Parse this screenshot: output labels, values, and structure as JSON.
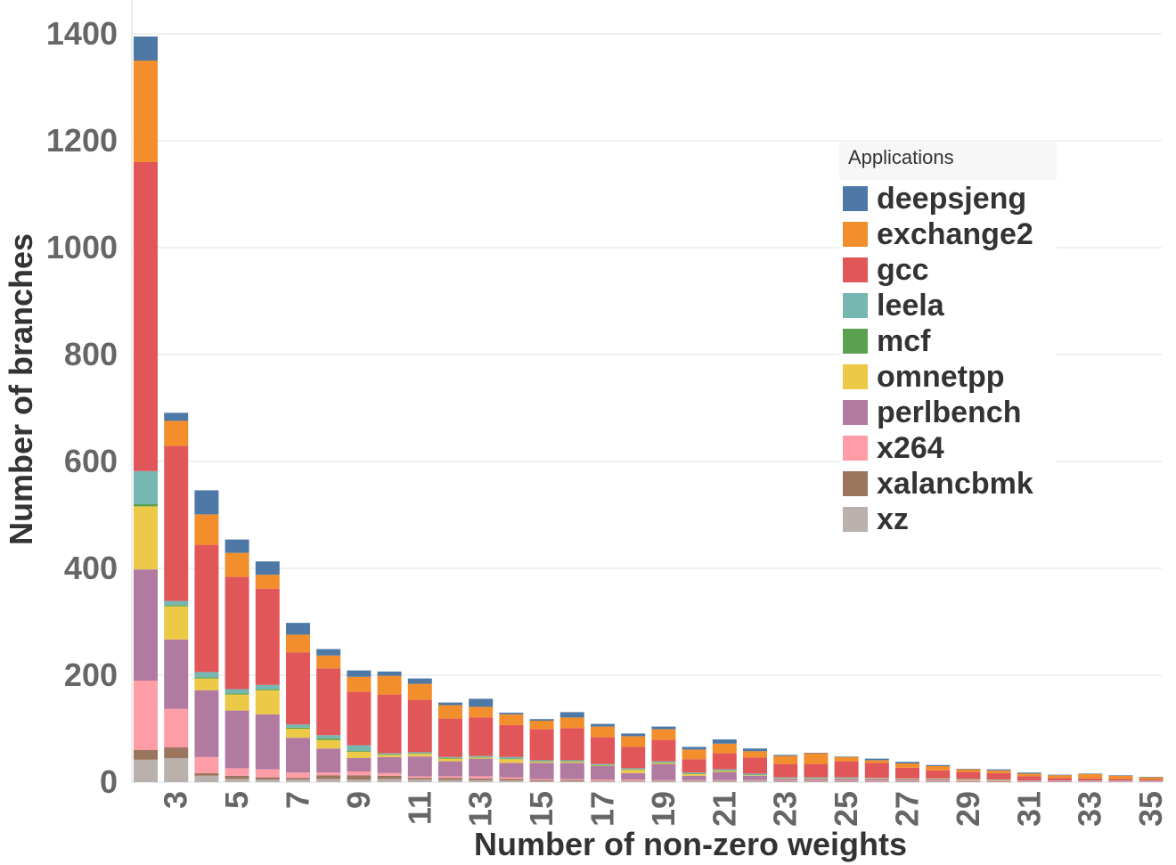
{
  "chart_data": {
    "type": "bar",
    "stacked": true,
    "xlabel": "Number of non-zero weights",
    "ylabel": "Number of branches",
    "ylim": [
      0,
      1400
    ],
    "yticks": [
      0,
      200,
      400,
      600,
      800,
      1000,
      1200,
      1400
    ],
    "xtick_labels": [
      "3",
      "5",
      "7",
      "9",
      "11",
      "13",
      "15",
      "17",
      "19",
      "21",
      "23",
      "25",
      "27",
      "29",
      "31",
      "33",
      "35"
    ],
    "grid": true,
    "legend_title": "Applications",
    "legend_position": "right",
    "categories": [
      2,
      3,
      4,
      5,
      6,
      7,
      8,
      9,
      10,
      11,
      12,
      13,
      14,
      15,
      16,
      17,
      18,
      19,
      20,
      21,
      22,
      23,
      24,
      25,
      26,
      27,
      28,
      29,
      30,
      31,
      32,
      33,
      34,
      35
    ],
    "series": [
      {
        "name": "xz",
        "color": "#bab0ac",
        "values": [
          42,
          45,
          12,
          6,
          5,
          5,
          6,
          5,
          6,
          5,
          4,
          4,
          3,
          2,
          2,
          2,
          2,
          2,
          2,
          2,
          2,
          1,
          1,
          1,
          1,
          1,
          1,
          1,
          0,
          0,
          0,
          0,
          0,
          0
        ]
      },
      {
        "name": "xalancbmk",
        "color": "#9c755f",
        "values": [
          18,
          20,
          5,
          6,
          4,
          3,
          7,
          8,
          6,
          3,
          4,
          3,
          3,
          2,
          2,
          1,
          1,
          1,
          1,
          1,
          1,
          1,
          1,
          1,
          1,
          1,
          1,
          1,
          1,
          0,
          0,
          0,
          0,
          0
        ]
      },
      {
        "name": "x264",
        "color": "#ff9da7",
        "values": [
          130,
          72,
          30,
          14,
          15,
          10,
          5,
          7,
          5,
          3,
          3,
          4,
          3,
          2,
          2,
          2,
          2,
          1,
          1,
          1,
          1,
          1,
          1,
          1,
          1,
          1,
          1,
          1,
          1,
          1,
          1,
          1,
          1,
          1
        ]
      },
      {
        "name": "perlbench",
        "color": "#b07aa1",
        "values": [
          208,
          130,
          125,
          108,
          103,
          65,
          45,
          25,
          30,
          37,
          28,
          33,
          27,
          30,
          30,
          25,
          12,
          30,
          8,
          15,
          8,
          3,
          3,
          3,
          3,
          2,
          2,
          1,
          1,
          1,
          1,
          1,
          1,
          1
        ]
      },
      {
        "name": "omnetpp",
        "color": "#edc948",
        "values": [
          118,
          62,
          22,
          30,
          45,
          17,
          16,
          12,
          4,
          5,
          5,
          2,
          7,
          2,
          2,
          1,
          6,
          2,
          3,
          2,
          1,
          1,
          1,
          1,
          1,
          1,
          1,
          1,
          1,
          0,
          0,
          0,
          0,
          0
        ]
      },
      {
        "name": "mcf",
        "color": "#59a14f",
        "values": [
          4,
          2,
          2,
          2,
          2,
          2,
          3,
          2,
          1,
          1,
          1,
          1,
          1,
          1,
          1,
          1,
          1,
          1,
          1,
          1,
          1,
          0,
          0,
          0,
          0,
          0,
          0,
          0,
          0,
          0,
          0,
          0,
          0,
          0
        ]
      },
      {
        "name": "leela",
        "color": "#76b7b2",
        "values": [
          62,
          8,
          10,
          8,
          8,
          6,
          6,
          10,
          2,
          2,
          2,
          2,
          3,
          2,
          2,
          2,
          2,
          2,
          2,
          2,
          2,
          2,
          2,
          2,
          1,
          1,
          1,
          1,
          1,
          1,
          1,
          1,
          1,
          1
        ]
      },
      {
        "name": "gcc",
        "color": "#e15759",
        "values": [
          578,
          290,
          238,
          210,
          180,
          135,
          125,
          100,
          110,
          98,
          72,
          72,
          60,
          58,
          60,
          50,
          40,
          40,
          25,
          30,
          30,
          25,
          25,
          30,
          28,
          20,
          15,
          13,
          12,
          8,
          5,
          4,
          3,
          2
        ]
      },
      {
        "name": "exchange2",
        "color": "#f28e2b",
        "values": [
          190,
          47,
          57,
          45,
          26,
          33,
          24,
          28,
          35,
          30,
          25,
          20,
          20,
          16,
          20,
          20,
          20,
          20,
          18,
          18,
          12,
          15,
          20,
          8,
          5,
          8,
          8,
          5,
          5,
          5,
          5,
          8,
          6,
          4
        ]
      },
      {
        "name": "deepsjeng",
        "color": "#4e79a7",
        "values": [
          45,
          15,
          45,
          25,
          25,
          22,
          12,
          12,
          8,
          10,
          5,
          15,
          3,
          3,
          10,
          5,
          5,
          5,
          5,
          8,
          5,
          2,
          1,
          1,
          3,
          3,
          2,
          1,
          2,
          2,
          1,
          1,
          1,
          1
        ]
      }
    ]
  }
}
